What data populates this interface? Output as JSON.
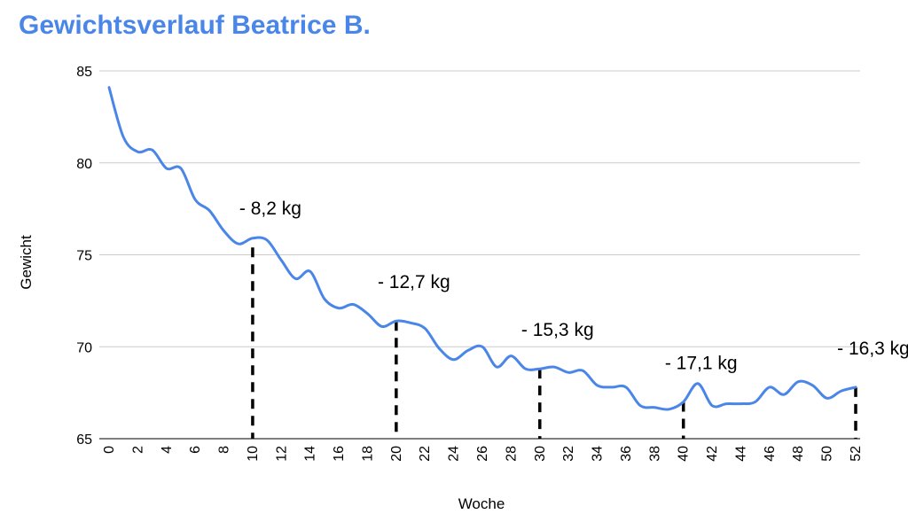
{
  "chart_data": {
    "type": "line",
    "title": "Gewichtsverlauf Beatrice B.",
    "xlabel": "Woche",
    "ylabel": "Gewicht",
    "ylim": [
      65,
      85
    ],
    "xlim": [
      0,
      52
    ],
    "yticks": [
      65,
      70,
      75,
      80,
      85
    ],
    "xticks": [
      0,
      2,
      4,
      6,
      8,
      10,
      12,
      14,
      16,
      18,
      20,
      22,
      24,
      26,
      28,
      30,
      32,
      34,
      36,
      38,
      40,
      42,
      44,
      46,
      48,
      50,
      52
    ],
    "grid": true,
    "colors": {
      "line": "#4a86e8",
      "title": "#4a86e8",
      "grid": "#cccccc",
      "marker": "#000000"
    },
    "series": [
      {
        "values": [
          {
            "x": 0,
            "y": 84.1
          },
          {
            "x": 1,
            "y": 81.4
          },
          {
            "x": 2,
            "y": 80.6
          },
          {
            "x": 3,
            "y": 80.7
          },
          {
            "x": 4,
            "y": 79.7
          },
          {
            "x": 5,
            "y": 79.7
          },
          {
            "x": 6,
            "y": 78.0
          },
          {
            "x": 7,
            "y": 77.4
          },
          {
            "x": 8,
            "y": 76.3
          },
          {
            "x": 9,
            "y": 75.6
          },
          {
            "x": 10,
            "y": 75.9
          },
          {
            "x": 11,
            "y": 75.8
          },
          {
            "x": 12,
            "y": 74.7
          },
          {
            "x": 13,
            "y": 73.7
          },
          {
            "x": 14,
            "y": 74.1
          },
          {
            "x": 15,
            "y": 72.6
          },
          {
            "x": 16,
            "y": 72.1
          },
          {
            "x": 17,
            "y": 72.3
          },
          {
            "x": 18,
            "y": 71.8
          },
          {
            "x": 19,
            "y": 71.1
          },
          {
            "x": 20,
            "y": 71.4
          },
          {
            "x": 21,
            "y": 71.3
          },
          {
            "x": 22,
            "y": 71.0
          },
          {
            "x": 23,
            "y": 69.9
          },
          {
            "x": 24,
            "y": 69.3
          },
          {
            "x": 25,
            "y": 69.8
          },
          {
            "x": 26,
            "y": 70.0
          },
          {
            "x": 27,
            "y": 68.9
          },
          {
            "x": 28,
            "y": 69.5
          },
          {
            "x": 29,
            "y": 68.8
          },
          {
            "x": 30,
            "y": 68.8
          },
          {
            "x": 31,
            "y": 68.9
          },
          {
            "x": 32,
            "y": 68.6
          },
          {
            "x": 33,
            "y": 68.7
          },
          {
            "x": 34,
            "y": 67.9
          },
          {
            "x": 35,
            "y": 67.8
          },
          {
            "x": 36,
            "y": 67.8
          },
          {
            "x": 37,
            "y": 66.8
          },
          {
            "x": 38,
            "y": 66.7
          },
          {
            "x": 39,
            "y": 66.6
          },
          {
            "x": 40,
            "y": 67.0
          },
          {
            "x": 41,
            "y": 68.0
          },
          {
            "x": 42,
            "y": 66.8
          },
          {
            "x": 43,
            "y": 66.9
          },
          {
            "x": 44,
            "y": 66.9
          },
          {
            "x": 45,
            "y": 67.0
          },
          {
            "x": 46,
            "y": 67.8
          },
          {
            "x": 47,
            "y": 67.4
          },
          {
            "x": 48,
            "y": 68.1
          },
          {
            "x": 49,
            "y": 67.9
          },
          {
            "x": 50,
            "y": 67.2
          },
          {
            "x": 51,
            "y": 67.6
          },
          {
            "x": 52,
            "y": 67.8
          }
        ]
      }
    ],
    "annotations": [
      {
        "x": 10,
        "y": 75.4,
        "label": "- 8,2 kg"
      },
      {
        "x": 20,
        "y": 71.4,
        "label": "- 12,7 kg"
      },
      {
        "x": 30,
        "y": 68.8,
        "label": "- 15,3 kg"
      },
      {
        "x": 40,
        "y": 67.0,
        "label": "- 17,1 kg"
      },
      {
        "x": 52,
        "y": 67.8,
        "label": "- 16,3 kg"
      }
    ]
  }
}
